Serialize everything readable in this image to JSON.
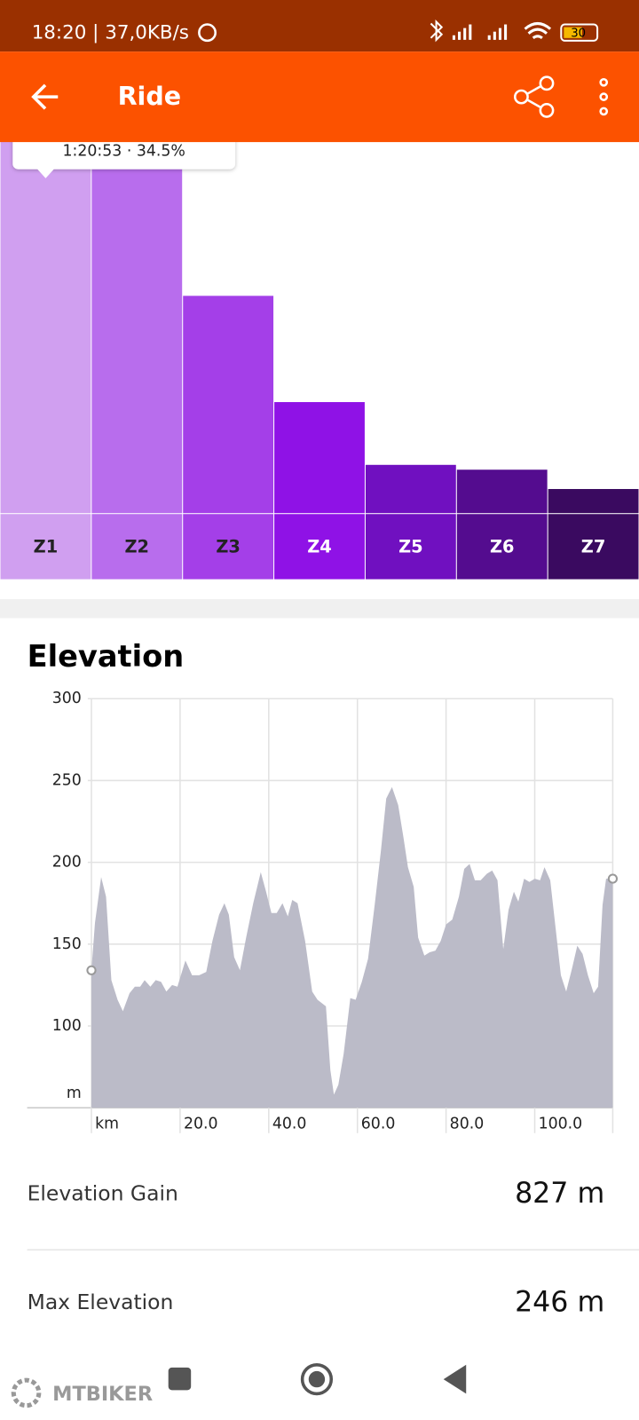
{
  "status_bar": {
    "time": "18:20 | 37,0KB/s",
    "battery": "30"
  },
  "app_bar": {
    "title": "Ride"
  },
  "chart_data": [
    {
      "type": "bar",
      "categories": [
        "Z1",
        "Z2",
        "Z3",
        "Z4",
        "Z5",
        "Z6",
        "Z7"
      ],
      "values": [
        34.5,
        28.6,
        18.0,
        9.2,
        4.0,
        3.6,
        2.0
      ],
      "value_labels": [
        "1:20:53 · 34.5%",
        null,
        null,
        null,
        null,
        null,
        null
      ],
      "colors": [
        "#d09ff0",
        "#b86ded",
        "#a43fe8",
        "#8f12e6",
        "#7010c0",
        "#540c8f",
        "#3a0a60"
      ]
    },
    {
      "type": "area",
      "title": "Elevation",
      "color": "#bbbbc8",
      "grid": true,
      "x": [
        0,
        0.8,
        2.2,
        3.3,
        4.5,
        5.9,
        7.1,
        8.6,
        9.8,
        11.0,
        12.0,
        13.3,
        14.5,
        15.7,
        16.9,
        18.2,
        19.4,
        21.2,
        22.7,
        24.3,
        25.9,
        27.3,
        28.8,
        30.0,
        31.0,
        32.2,
        33.5,
        34.9,
        36.5,
        38.2,
        39.4,
        40.6,
        41.8,
        43.1,
        44.3,
        45.3,
        46.5,
        48.2,
        49.8,
        51.0,
        52.9,
        53.9,
        54.7,
        55.7,
        56.9,
        58.4,
        59.6,
        61.0,
        62.4,
        63.9,
        65.3,
        66.5,
        67.8,
        69.2,
        70.4,
        71.4,
        72.7,
        73.7,
        75.1,
        76.3,
        77.6,
        78.8,
        80.0,
        81.4,
        82.9,
        84.1,
        85.3,
        86.5,
        87.8,
        89.2,
        90.4,
        91.6,
        92.9,
        94.1,
        95.3,
        96.3,
        97.6,
        98.8,
        100.0,
        101.2,
        102.2,
        103.5,
        104.7,
        105.9,
        107.1,
        108.4,
        109.6,
        110.8,
        112.0,
        113.3,
        114.3,
        115.3,
        116.1,
        117.6
      ],
      "values": [
        134,
        163,
        191,
        179,
        128,
        116,
        109,
        120,
        124,
        124,
        128,
        124,
        128,
        127,
        121,
        125,
        124,
        140,
        131,
        131,
        133,
        152,
        168,
        175,
        168,
        142,
        134,
        154,
        175,
        194,
        182,
        169,
        169,
        175,
        167,
        177,
        175,
        152,
        121,
        116,
        112,
        73,
        58,
        64,
        83,
        117,
        116,
        127,
        141,
        174,
        207,
        239,
        246,
        235,
        215,
        197,
        185,
        154,
        143,
        145,
        146,
        152,
        162,
        165,
        179,
        196,
        199,
        189,
        189,
        193,
        195,
        189,
        147,
        171,
        182,
        176,
        190,
        188,
        190,
        189,
        197,
        189,
        160,
        131,
        121,
        135,
        149,
        144,
        131,
        120,
        124,
        174,
        190,
        190
      ],
      "xlim": [
        0,
        117.6
      ],
      "ylim": [
        50,
        300
      ],
      "xticks": [
        {
          "value": 0,
          "label": "km"
        },
        {
          "value": 20,
          "label": "20.0"
        },
        {
          "value": 40,
          "label": "40.0"
        },
        {
          "value": 60,
          "label": "60.0"
        },
        {
          "value": 80,
          "label": "80.0"
        },
        {
          "value": 100,
          "label": "100.0"
        }
      ],
      "yticks": [
        {
          "value": 50,
          "label": "m"
        },
        100,
        150,
        200,
        250,
        300
      ]
    }
  ],
  "stats": [
    {
      "label": "Elevation Gain",
      "value": "827 m"
    },
    {
      "label": "Max Elevation",
      "value": "246 m"
    }
  ],
  "watermark": "MTBIKER"
}
